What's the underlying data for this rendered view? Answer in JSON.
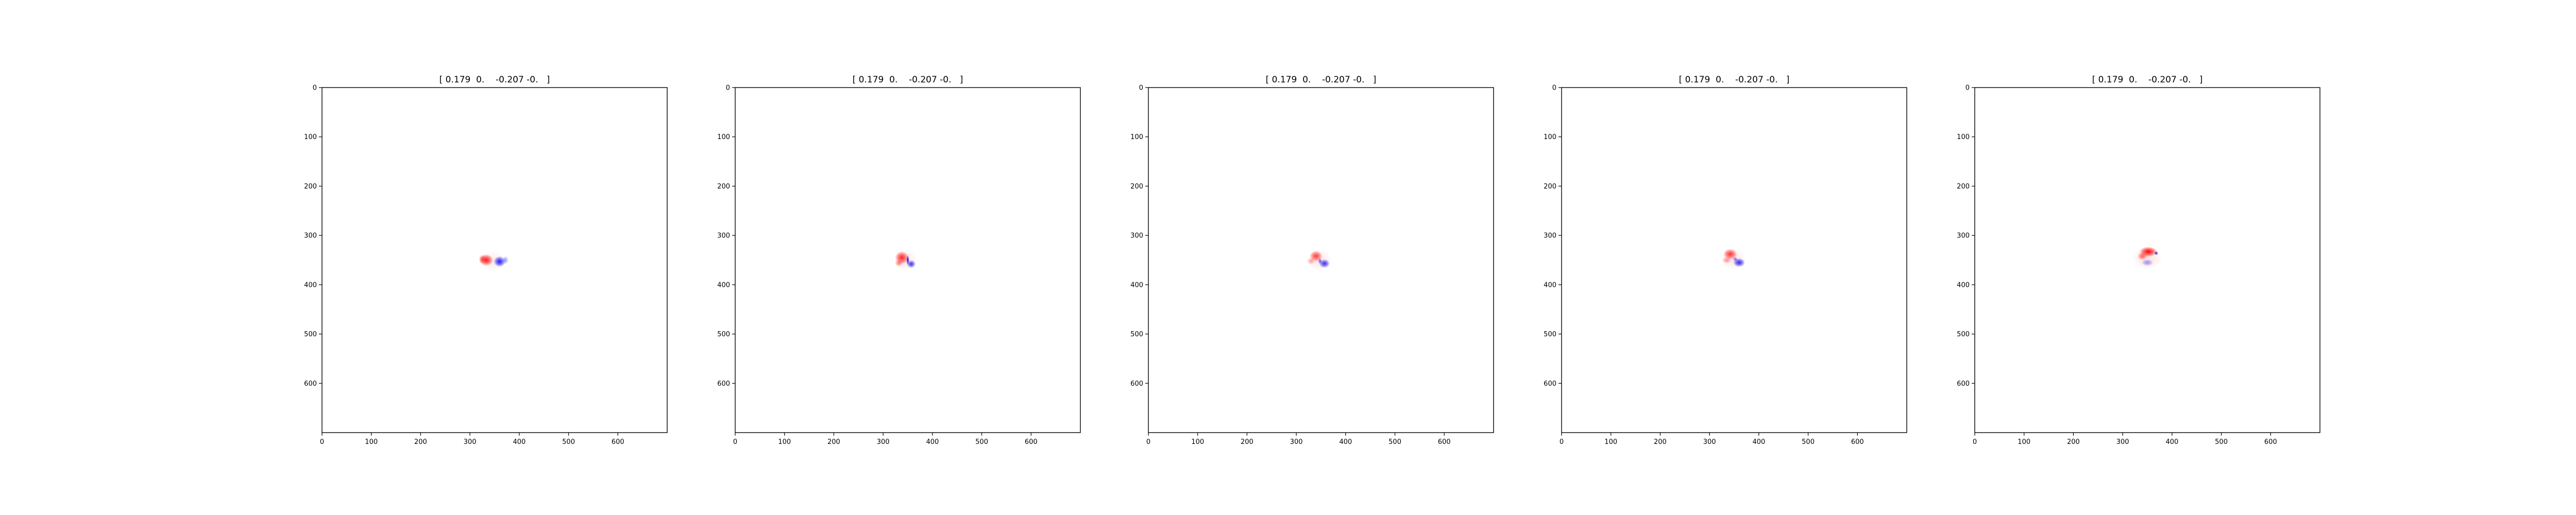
{
  "chart_data": [
    {
      "type": "heatmap",
      "title": "[ 0.179  0.    -0.207 -0.   ]",
      "xlabel": "",
      "ylabel": "",
      "xlim": [
        0,
        700
      ],
      "ylim": [
        700,
        0
      ],
      "x_ticks": [
        0,
        100,
        200,
        300,
        400,
        500,
        600
      ],
      "y_ticks": [
        0,
        100,
        200,
        300,
        400,
        500,
        600
      ],
      "colormap": "bwr",
      "colors": {
        "positive": "#ff0000",
        "negative": "#0000ff",
        "zero": "#ffffff"
      },
      "grid": false,
      "blobs": [
        {
          "x": 333,
          "y": 350,
          "rx": 14,
          "ry": 12,
          "value": 0.9
        },
        {
          "x": 325,
          "y": 348,
          "rx": 7,
          "ry": 9,
          "value": 0.5
        },
        {
          "x": 360,
          "y": 353,
          "rx": 12,
          "ry": 11,
          "value": -0.9
        },
        {
          "x": 372,
          "y": 350,
          "rx": 6,
          "ry": 8,
          "value": -0.4
        },
        {
          "x": 347,
          "y": 352,
          "rx": 24,
          "ry": 22,
          "value": 0.08
        }
      ]
    },
    {
      "type": "heatmap",
      "title": "[ 0.179  0.    -0.207 -0.   ]",
      "xlabel": "",
      "ylabel": "",
      "xlim": [
        0,
        700
      ],
      "ylim": [
        700,
        0
      ],
      "x_ticks": [
        0,
        100,
        200,
        300,
        400,
        500,
        600
      ],
      "y_ticks": [
        0,
        100,
        200,
        300,
        400,
        500,
        600
      ],
      "colormap": "bwr",
      "colors": {
        "positive": "#ff0000",
        "negative": "#0000ff",
        "zero": "#ffffff"
      },
      "grid": false,
      "blobs": [
        {
          "x": 338,
          "y": 345,
          "rx": 14,
          "ry": 13,
          "value": 0.85
        },
        {
          "x": 332,
          "y": 356,
          "rx": 8,
          "ry": 7,
          "value": 0.5
        },
        {
          "x": 357,
          "y": 358,
          "rx": 9,
          "ry": 8,
          "value": -0.8
        },
        {
          "x": 350,
          "y": 350,
          "rx": 3,
          "ry": 10,
          "value": -1.0
        },
        {
          "x": 346,
          "y": 350,
          "rx": 24,
          "ry": 22,
          "value": 0.1
        }
      ]
    },
    {
      "type": "heatmap",
      "title": "[ 0.179  0.    -0.207 -0.   ]",
      "xlabel": "",
      "ylabel": "",
      "xlim": [
        0,
        700
      ],
      "ylim": [
        700,
        0
      ],
      "x_ticks": [
        0,
        100,
        200,
        300,
        400,
        500,
        600
      ],
      "y_ticks": [
        0,
        100,
        200,
        300,
        400,
        500,
        600
      ],
      "colormap": "bwr",
      "colors": {
        "positive": "#ff0000",
        "negative": "#0000ff",
        "zero": "#ffffff"
      },
      "grid": false,
      "blobs": [
        {
          "x": 340,
          "y": 342,
          "rx": 13,
          "ry": 11,
          "value": 0.75
        },
        {
          "x": 330,
          "y": 352,
          "rx": 8,
          "ry": 7,
          "value": 0.35
        },
        {
          "x": 357,
          "y": 357,
          "rx": 11,
          "ry": 9,
          "value": -0.8
        },
        {
          "x": 348,
          "y": 352,
          "rx": 4,
          "ry": 6,
          "value": -0.6
        },
        {
          "x": 346,
          "y": 350,
          "rx": 26,
          "ry": 22,
          "value": 0.1
        }
      ]
    },
    {
      "type": "heatmap",
      "title": "[ 0.179  0.    -0.207 -0.   ]",
      "xlabel": "",
      "ylabel": "",
      "xlim": [
        0,
        700
      ],
      "ylim": [
        700,
        0
      ],
      "x_ticks": [
        0,
        100,
        200,
        300,
        400,
        500,
        600
      ],
      "y_ticks": [
        0,
        100,
        200,
        300,
        400,
        500,
        600
      ],
      "colormap": "bwr",
      "colors": {
        "positive": "#ff0000",
        "negative": "#0000ff",
        "zero": "#ffffff"
      },
      "grid": false,
      "blobs": [
        {
          "x": 342,
          "y": 338,
          "rx": 14,
          "ry": 11,
          "value": 0.8
        },
        {
          "x": 335,
          "y": 350,
          "rx": 9,
          "ry": 7,
          "value": 0.4
        },
        {
          "x": 360,
          "y": 355,
          "rx": 12,
          "ry": 9,
          "value": -0.85
        },
        {
          "x": 352,
          "y": 348,
          "rx": 5,
          "ry": 5,
          "value": -0.5
        },
        {
          "x": 348,
          "y": 348,
          "rx": 26,
          "ry": 22,
          "value": 0.1
        }
      ]
    },
    {
      "type": "heatmap",
      "title": "[ 0.179  0.    -0.207 -0.   ]",
      "xlabel": "",
      "ylabel": "",
      "xlim": [
        0,
        700
      ],
      "ylim": [
        700,
        0
      ],
      "x_ticks": [
        0,
        100,
        200,
        300,
        400,
        500,
        600
      ],
      "y_ticks": [
        0,
        100,
        200,
        300,
        400,
        500,
        600
      ],
      "colormap": "bwr",
      "colors": {
        "positive": "#ff0000",
        "negative": "#0000ff",
        "zero": "#ffffff"
      },
      "grid": false,
      "blobs": [
        {
          "x": 352,
          "y": 333,
          "rx": 18,
          "ry": 10,
          "value": 1.0
        },
        {
          "x": 340,
          "y": 342,
          "rx": 10,
          "ry": 8,
          "value": 0.6
        },
        {
          "x": 350,
          "y": 355,
          "rx": 12,
          "ry": 7,
          "value": -0.4
        },
        {
          "x": 368,
          "y": 336,
          "rx": 4,
          "ry": 4,
          "value": -0.9
        },
        {
          "x": 350,
          "y": 345,
          "rx": 30,
          "ry": 24,
          "value": 0.12
        }
      ]
    }
  ]
}
